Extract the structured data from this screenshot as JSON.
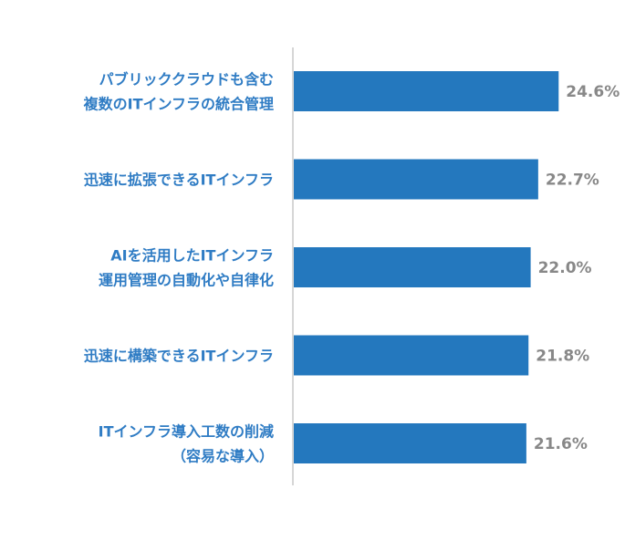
{
  "chart_data": {
    "type": "bar",
    "orientation": "horizontal",
    "categories": [
      [
        "パブリッククラウドも含む",
        "複数のITインフラの統合管理"
      ],
      [
        "迅速に拡張できるITインフラ"
      ],
      [
        "AIを活用したITインフラ",
        "運用管理の自動化や自律化"
      ],
      [
        "迅速に構築できるITインフラ"
      ],
      [
        "ITインフラ導入工数の削減",
        "（容易な導入）"
      ]
    ],
    "values": [
      24.6,
      22.7,
      22.0,
      21.8,
      21.6
    ],
    "value_labels": [
      "24.6%",
      "22.7%",
      "22.0%",
      "21.8%",
      "21.6%"
    ],
    "title": "",
    "xlabel": "",
    "ylabel": "",
    "grid": false,
    "legend": "none",
    "bar_color": "#2478be",
    "label_color": "#2f7cc4",
    "value_label_color": "#888888"
  }
}
